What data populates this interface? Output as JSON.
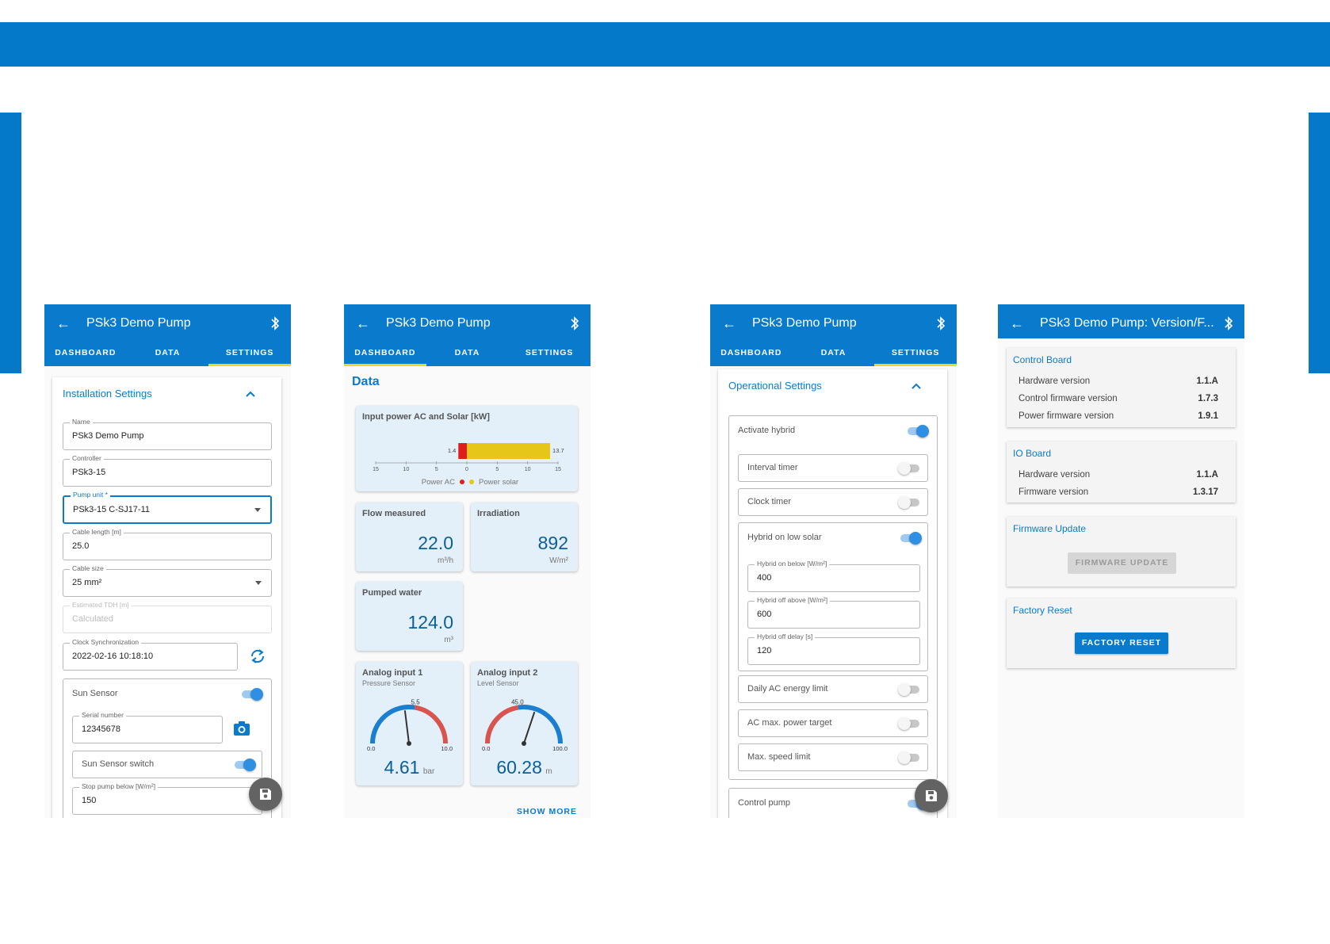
{
  "app_title": "PSk3 Demo Pump",
  "version_title": "PSk3 Demo Pump: Version/F...",
  "tabs": {
    "dashboard": "DASHBOARD",
    "data": "DATA",
    "settings": "SETTINGS"
  },
  "install": {
    "section_title": "Installation Settings",
    "name_label": "Name",
    "name_value": "PSk3 Demo Pump",
    "controller_label": "Controller",
    "controller_value": "PSk3-15",
    "pump_label": "Pump unit *",
    "pump_value": "PSk3-15 C-SJ17-11",
    "cable_len_label": "Cable length [m]",
    "cable_len_value": "25.0",
    "cable_size_label": "Cable size",
    "cable_size_value": "25 mm²",
    "tdh_label": "Estimated TDH [m]",
    "tdh_value": "Calculated",
    "clock_label": "Clock Synchronization",
    "clock_value": "2022-02-16 10:18:10",
    "sun_sensor_label": "Sun Sensor",
    "serial_label": "Serial number",
    "serial_value": "12345678",
    "sun_switch_label": "Sun Sensor switch",
    "stop_label": "Stop pump below [W/m²]",
    "stop_value": "150"
  },
  "data_screen": {
    "heading": "Data",
    "power_title": "Input power AC and Solar [kW]",
    "power_ac_value": "1.4",
    "power_solar_value": "13.7",
    "axis_ticks": [
      "15",
      "10",
      "5",
      "0",
      "5",
      "10",
      "15"
    ],
    "legend_ac": "Power AC",
    "legend_solar": "Power solar",
    "flow_title": "Flow measured",
    "flow_value": "22.0",
    "flow_unit": "m³/h",
    "irr_title": "Irradiation",
    "irr_value": "892",
    "irr_unit": "W/m²",
    "pumped_title": "Pumped water",
    "pumped_value": "124.0",
    "pumped_unit": "m³",
    "a1_title": "Analog input 1",
    "a1_sub": "Pressure Sensor",
    "a1_mark": "5.5",
    "a1_min": "0.0",
    "a1_max": "10.0",
    "a1_value": "4.61",
    "a1_unit": "bar",
    "a1_fraction": 0.461,
    "a1_threshold": 0.55,
    "a2_title": "Analog input 2",
    "a2_sub": "Level Sensor",
    "a2_mark": "45.0",
    "a2_min": "0.0",
    "a2_max": "100.0",
    "a2_value": "60.28",
    "a2_unit": "m",
    "a2_fraction": 0.6028,
    "a2_threshold": 0.45,
    "show_more": "SHOW MORE"
  },
  "operational": {
    "section_title": "Operational Settings",
    "activate_hybrid": "Activate hybrid",
    "interval_timer": "Interval timer",
    "clock_timer": "Clock timer",
    "hybrid_low_solar": "Hybrid on low solar",
    "hyb_on_label": "Hybrid on below [W/m²]",
    "hyb_on_value": "400",
    "hyb_off_label": "Hybrid off above [W/m²]",
    "hyb_off_value": "600",
    "hyb_delay_label": "Hybrid off delay [s]",
    "hyb_delay_value": "120",
    "daily_ac": "Daily AC energy limit",
    "ac_max": "AC max. power target",
    "max_speed": "Max. speed limit",
    "control_pump": "Control pump"
  },
  "version": {
    "control_board": "Control Board",
    "hw_label": "Hardware version",
    "cb_hw": "1.1.A",
    "ctrl_fw_label": "Control firmware version",
    "cb_ctrl_fw": "1.7.3",
    "pwr_fw_label": "Power firmware version",
    "cb_pwr_fw": "1.9.1",
    "io_board": "IO Board",
    "io_hw": "1.1.A",
    "fw_label": "Firmware version",
    "io_fw": "1.3.17",
    "fw_update": "Firmware Update",
    "fw_update_btn": "FIRMWARE UPDATE",
    "factory_reset": "Factory Reset",
    "factory_reset_btn": "FACTORY RESET"
  },
  "colors": {
    "primary": "#0a7bcc",
    "tab_indicator": "#e8d82a",
    "power_ac": "#e01e1e",
    "power_solar": "#e6c619",
    "gauge_blue": "#1a7fd1",
    "gauge_red": "#d9534f"
  }
}
